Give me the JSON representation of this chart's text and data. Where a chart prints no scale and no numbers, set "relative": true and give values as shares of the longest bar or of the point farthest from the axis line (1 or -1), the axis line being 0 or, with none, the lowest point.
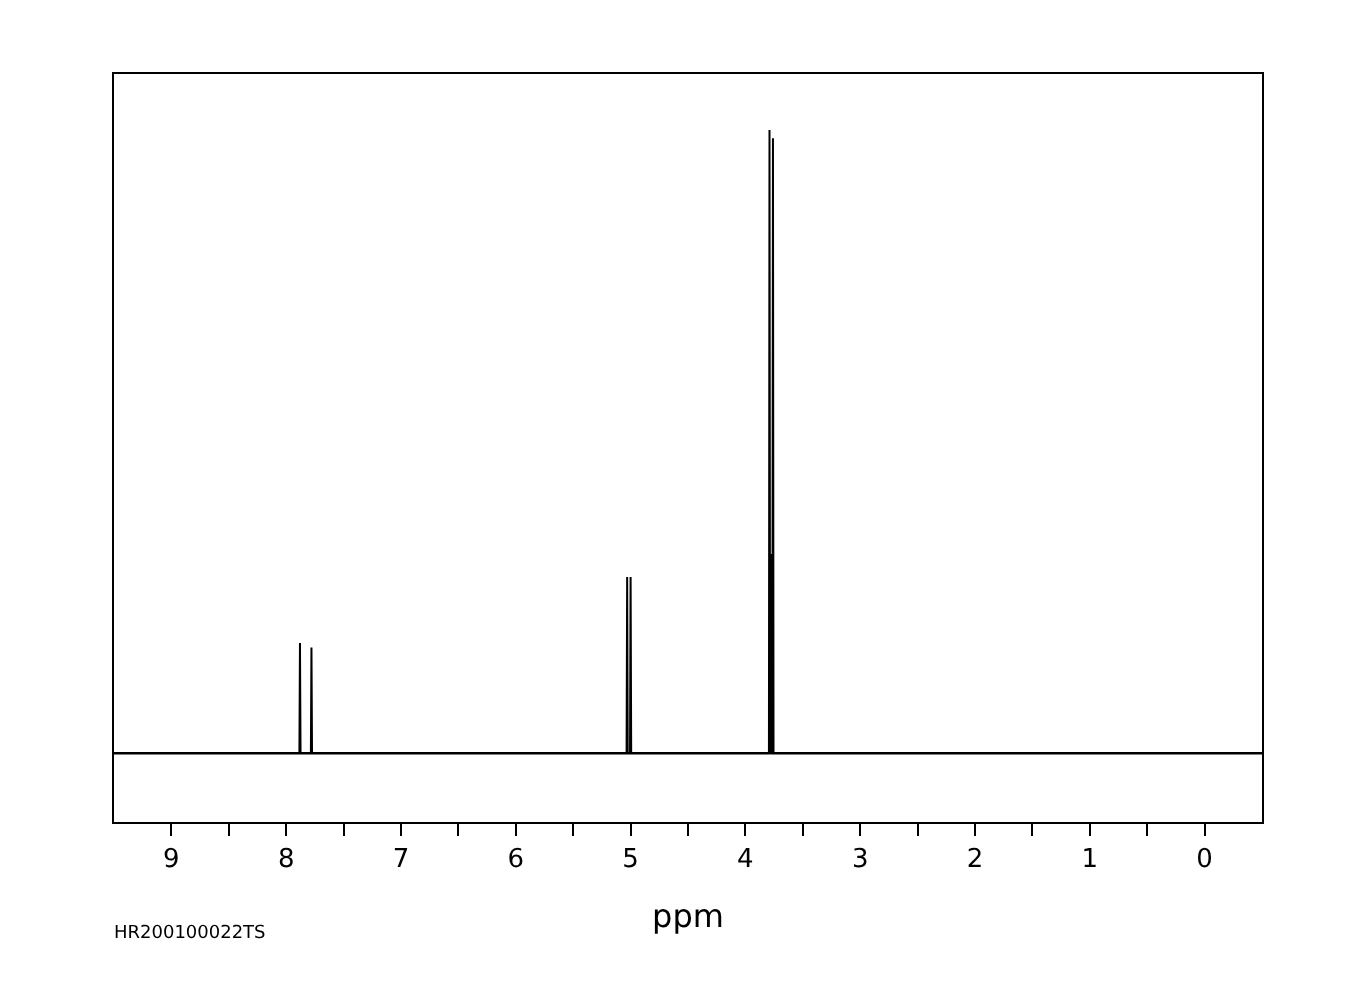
{
  "chart_data": {
    "type": "line",
    "relative": true,
    "xlabel": "ppm",
    "annotations": [
      "HR200100022TS"
    ],
    "xlim": [
      9.5,
      -0.5
    ],
    "xticks": [
      9,
      8,
      7,
      6,
      5,
      4,
      3,
      2,
      1,
      0
    ],
    "legend": false,
    "marker": "none",
    "line_style": "solid",
    "series": [
      {
        "color": "#000000",
        "x": [
          9.5,
          7.9,
          7.885,
          7.88,
          7.875,
          7.79,
          7.785,
          7.78,
          7.775,
          5.04,
          5.035,
          5.03,
          5.025,
          5.01,
          5.005,
          5.0,
          4.995,
          3.8,
          3.795,
          3.79,
          3.785,
          3.78,
          3.775,
          3.77,
          3.765,
          3.76,
          3.755,
          -0.5
        ],
        "values": [
          0,
          0,
          0,
          0.177,
          0,
          0,
          0,
          0.17,
          0,
          0,
          0,
          0.283,
          0,
          0,
          0,
          0.283,
          0,
          0,
          0,
          1.0,
          0,
          0.32,
          0,
          0,
          0,
          0.987,
          0,
          0
        ]
      }
    ]
  }
}
